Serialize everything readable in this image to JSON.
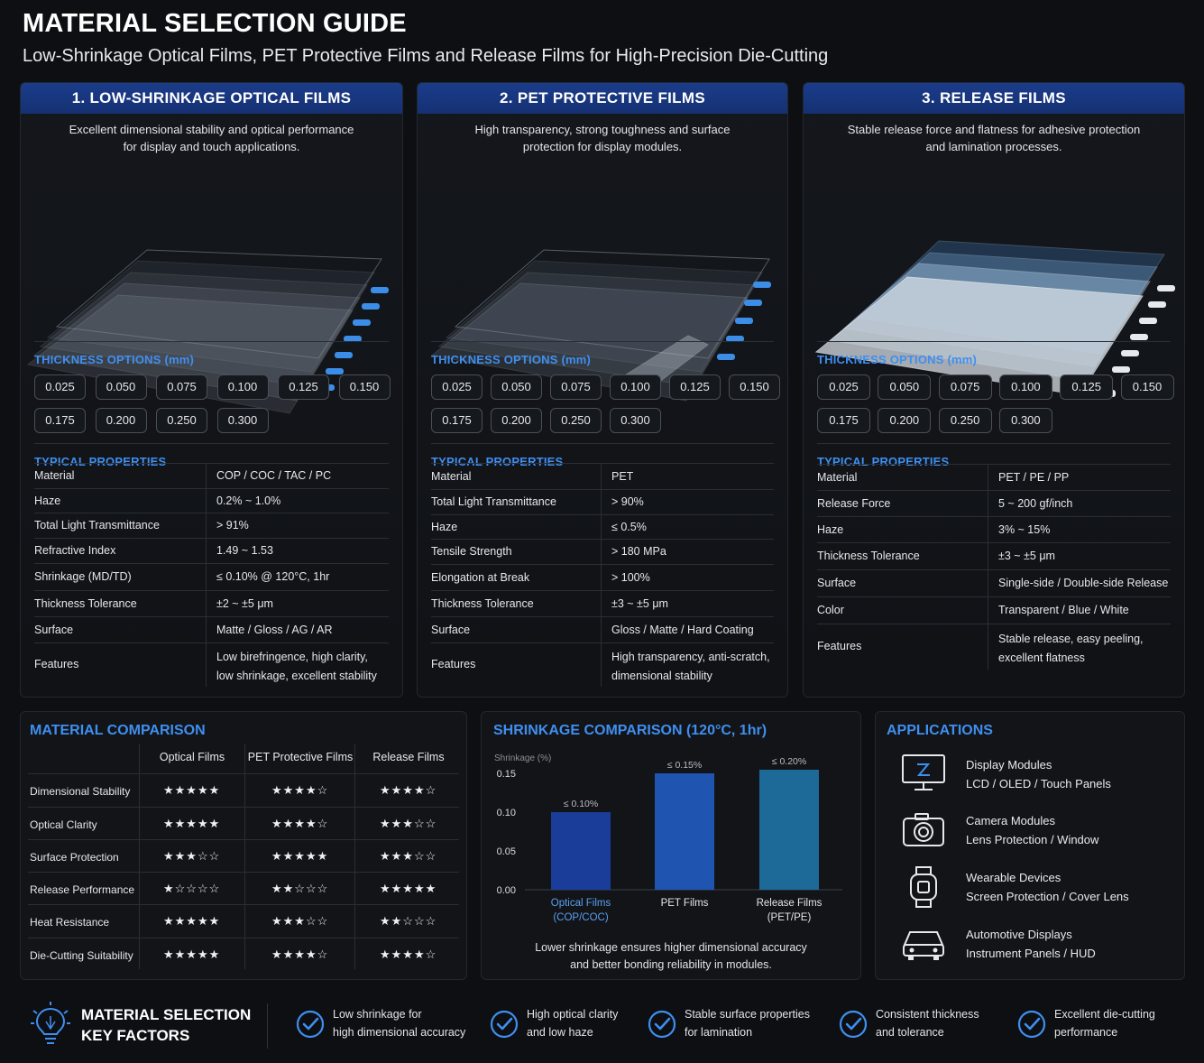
{
  "header": {
    "title": "MATERIAL SELECTION GUIDE",
    "subtitle": "Low-Shrinkage Optical Films, PET Protective Films and Release Films for High-Precision Die-Cutting"
  },
  "colors": {
    "accent": "#3f8ff0",
    "header_blue": "#1b3c8a",
    "background": "#0d0f12"
  },
  "panels": [
    {
      "title": "1. LOW-SHRINKAGE OPTICAL FILMS",
      "desc1": "Excellent dimensional stability and optical performance",
      "desc2": "for display and touch applications.",
      "thickness_label": "THICKNESS OPTIONS (mm)",
      "thickness": [
        "0.025",
        "0.050",
        "0.075",
        "0.100",
        "0.125",
        "0.150",
        "0.175",
        "0.200",
        "0.250",
        "0.300"
      ],
      "properties_label": "TYPICAL PROPERTIES",
      "properties": [
        {
          "k": "Material",
          "v": "COP / COC / TAC / PC",
          "v2": ""
        },
        {
          "k": "Haze",
          "v": "0.2% ~ 1.0%",
          "v2": ""
        },
        {
          "k": "Total Light Transmittance",
          "v": "> 91%",
          "v2": ""
        },
        {
          "k": "Refractive Index",
          "v": "1.49 ~ 1.53",
          "v2": ""
        },
        {
          "k": "Shrinkage (MD/TD)",
          "v": "≤ 0.10% @ 120°C, 1hr",
          "v2": ""
        },
        {
          "k": "Thickness Tolerance",
          "v": "±2 ~ ±5 μm",
          "v2": ""
        },
        {
          "k": "Surface",
          "v": "Matte / Gloss / AG / AR",
          "v2": ""
        },
        {
          "k": "Features",
          "v": "Low birefringence, high clarity,",
          "v2": "low shrinkage, excellent stability"
        }
      ]
    },
    {
      "title": "2. PET PROTECTIVE FILMS",
      "desc1": "High transparency, strong toughness and surface",
      "desc2": "protection for display modules.",
      "thickness_label": "THICKNESS OPTIONS (mm)",
      "thickness": [
        "0.025",
        "0.050",
        "0.075",
        "0.100",
        "0.125",
        "0.150",
        "0.175",
        "0.200",
        "0.250",
        "0.300"
      ],
      "properties_label": "TYPICAL PROPERTIES",
      "properties": [
        {
          "k": "Material",
          "v": "PET",
          "v2": ""
        },
        {
          "k": "Total Light Transmittance",
          "v": "> 90%",
          "v2": ""
        },
        {
          "k": "Haze",
          "v": "≤ 0.5%",
          "v2": ""
        },
        {
          "k": "Tensile Strength",
          "v": "> 180 MPa",
          "v2": ""
        },
        {
          "k": "Elongation at Break",
          "v": "> 100%",
          "v2": ""
        },
        {
          "k": "Thickness Tolerance",
          "v": "±3 ~ ±5 μm",
          "v2": ""
        },
        {
          "k": "Surface",
          "v": "Gloss / Matte / Hard Coating",
          "v2": ""
        },
        {
          "k": "Features",
          "v": "High transparency, anti-scratch,",
          "v2": "dimensional stability"
        }
      ]
    },
    {
      "title": "3. RELEASE FILMS",
      "desc1": "Stable release force and flatness for adhesive protection",
      "desc2": "and lamination processes.",
      "thickness_label": "THICKNESS OPTIONS (mm)",
      "thickness": [
        "0.025",
        "0.050",
        "0.075",
        "0.100",
        "0.125",
        "0.150",
        "0.175",
        "0.200",
        "0.250",
        "0.300"
      ],
      "properties_label": "TYPICAL PROPERTIES",
      "properties": [
        {
          "k": "Material",
          "v": "PET / PE / PP",
          "v2": ""
        },
        {
          "k": "Release Force",
          "v": "5 ~ 200 gf/inch",
          "v2": ""
        },
        {
          "k": "Haze",
          "v": "3% ~ 15%",
          "v2": ""
        },
        {
          "k": "Thickness Tolerance",
          "v": "±3 ~ ±5 μm",
          "v2": ""
        },
        {
          "k": "Surface",
          "v": "Single-side / Double-side Release",
          "v2": ""
        },
        {
          "k": "Color",
          "v": "Transparent / Blue / White",
          "v2": ""
        },
        {
          "k": "Features",
          "v": "Stable release, easy peeling,",
          "v2": "excellent flatness"
        }
      ]
    }
  ],
  "comparison": {
    "title": "MATERIAL COMPARISON",
    "columns": [
      "Optical Films",
      "PET Protective Films",
      "Release Films"
    ],
    "rows": [
      {
        "label": "Dimensional Stability",
        "ratings": [
          5,
          4,
          4
        ]
      },
      {
        "label": "Optical Clarity",
        "ratings": [
          5,
          4,
          3
        ]
      },
      {
        "label": "Surface Protection",
        "ratings": [
          3,
          5,
          3
        ]
      },
      {
        "label": "Release Performance",
        "ratings": [
          1,
          2,
          5
        ]
      },
      {
        "label": "Heat Resistance",
        "ratings": [
          5,
          3,
          2
        ]
      },
      {
        "label": "Die-Cutting Suitability",
        "ratings": [
          5,
          4,
          4
        ]
      }
    ]
  },
  "chart_data": {
    "type": "bar",
    "title": "SHRINKAGE COMPARISON (120°C, 1hr)",
    "ylabel": "Shrinkage (%)",
    "categories": [
      "Optical Films (COP/COC)",
      "PET Films",
      "Release Films (PET/PE)"
    ],
    "category_line1": [
      "Optical Films",
      "PET Films",
      "Release Films"
    ],
    "category_line2": [
      "(COP/COC)",
      "",
      "(PET/PE)"
    ],
    "values": [
      0.1,
      0.15,
      0.2
    ],
    "data_labels": [
      "≤ 0.10%",
      "≤ 0.15%",
      "≤ 0.20%"
    ],
    "bar_colors": [
      "#1a3d9a",
      "#1f55b0",
      "#1d6a99"
    ],
    "yticks": [
      "0.15",
      "0.10",
      "0.05",
      "0.00"
    ],
    "ylim": [
      0,
      0.2
    ],
    "note1": "Lower shrinkage ensures higher dimensional accuracy",
    "note2": "and better bonding reliability in modules."
  },
  "applications": {
    "title": "APPLICATIONS",
    "items": [
      {
        "icon": "monitor-icon",
        "t1": "Display Modules",
        "t2": "LCD / OLED / Touch Panels"
      },
      {
        "icon": "camera-icon",
        "t1": "Camera Modules",
        "t2": "Lens Protection / Window"
      },
      {
        "icon": "smartwatch-icon",
        "t1": "Wearable Devices",
        "t2": "Screen Protection / Cover Lens"
      },
      {
        "icon": "car-icon",
        "t1": "Automotive Displays",
        "t2": "Instrument Panels / HUD"
      }
    ]
  },
  "footer": {
    "title1": "MATERIAL SELECTION",
    "title2": "KEY FACTORS",
    "factors": [
      {
        "l1": "Low shrinkage for",
        "l2": "high dimensional accuracy"
      },
      {
        "l1": "High optical clarity",
        "l2": "and low haze"
      },
      {
        "l1": "Stable surface properties",
        "l2": "for lamination"
      },
      {
        "l1": "Consistent thickness",
        "l2": "and tolerance"
      },
      {
        "l1": "Excellent die-cutting",
        "l2": "performance"
      }
    ]
  }
}
